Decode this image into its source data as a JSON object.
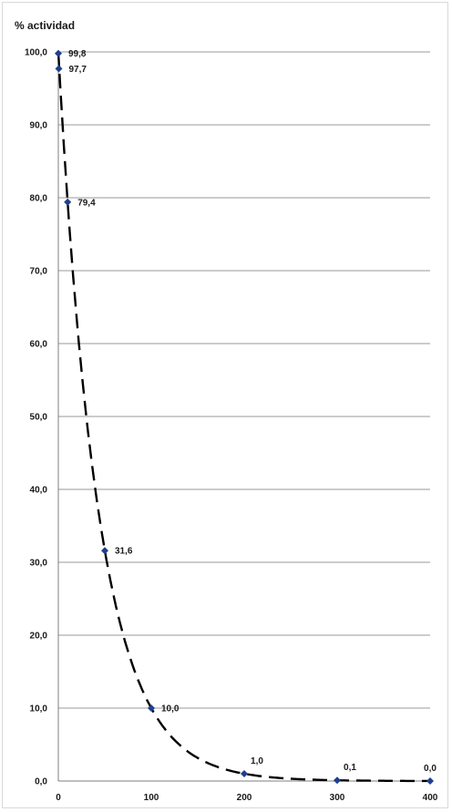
{
  "chart_data": {
    "type": "scatter",
    "title": "",
    "xlabel": "",
    "ylabel": "% actividad",
    "xlim": [
      0,
      400
    ],
    "ylim": [
      0,
      100
    ],
    "x_ticks": [
      "0",
      "100",
      "200",
      "300",
      "400"
    ],
    "y_ticks": [
      "0,0",
      "10,0",
      "20,0",
      "30,0",
      "40,0",
      "50,0",
      "60,0",
      "70,0",
      "80,0",
      "90,0",
      "100,0"
    ],
    "grid": "horizontal",
    "series": [
      {
        "x": [
          0,
          0.5,
          10,
          50,
          100,
          200,
          300,
          400
        ],
        "y": [
          99.8,
          97.7,
          79.4,
          31.6,
          10.0,
          1.0,
          0.1,
          0.0
        ],
        "labels": [
          "99,8",
          "97,7",
          "79,4",
          "31,6",
          "10,0",
          "1,0",
          "0,1",
          "0,0"
        ],
        "marker_color": "#1f3f8f",
        "line_style": "dashed",
        "line_color": "#000000"
      }
    ]
  }
}
